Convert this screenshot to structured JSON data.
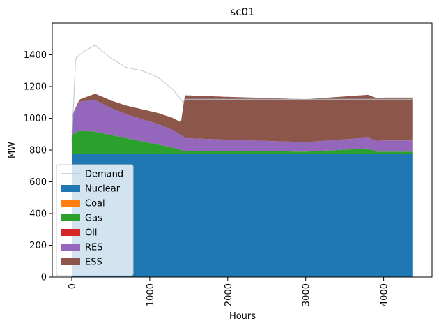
{
  "chart_data": {
    "type": "area",
    "title": "sc01",
    "xlabel": "Hours",
    "ylabel": "MW",
    "xlim": [
      -250,
      4620
    ],
    "ylim": [
      0,
      1600
    ],
    "xticks": [
      0,
      1000,
      2000,
      3000,
      4000
    ],
    "yticks": [
      0,
      200,
      400,
      600,
      800,
      1000,
      1200,
      1400
    ],
    "x_range": [
      0,
      4368
    ],
    "grid": false,
    "legend_position": "lower-left",
    "series": [
      {
        "name": "Demand",
        "kind": "line",
        "color": "#b9c7d4",
        "values_description_x": [
          0,
          50,
          150,
          300,
          500,
          700,
          900,
          1100,
          1300,
          1430,
          1450,
          2000,
          3000,
          4000,
          4368
        ],
        "values": [
          850,
          1380,
          1420,
          1460,
          1380,
          1320,
          1300,
          1260,
          1180,
          1100,
          1120,
          1120,
          1120,
          1120,
          1120
        ]
      },
      {
        "name": "Nuclear",
        "kind": "area",
        "color": "#1f77b4",
        "x": [
          0,
          4368
        ],
        "values": [
          775,
          775
        ]
      },
      {
        "name": "Coal",
        "kind": "area",
        "color": "#ff7f0e",
        "x": [
          0,
          4368
        ],
        "values": [
          0,
          0
        ]
      },
      {
        "name": "Gas",
        "kind": "area",
        "color": "#2ca02c",
        "x": [
          0,
          100,
          300,
          500,
          700,
          900,
          1100,
          1300,
          1430,
          1450,
          2000,
          3000,
          3800,
          3900,
          4368
        ],
        "values": [
          120,
          150,
          140,
          120,
          100,
          80,
          60,
          40,
          20,
          20,
          20,
          15,
          35,
          15,
          15
        ]
      },
      {
        "name": "Oil",
        "kind": "area",
        "color": "#d62728",
        "x": [
          0,
          4368
        ],
        "values": [
          0,
          0
        ]
      },
      {
        "name": "RES",
        "kind": "area",
        "color": "#9467bd",
        "x": [
          0,
          100,
          300,
          500,
          700,
          900,
          1100,
          1300,
          1430,
          1450,
          2000,
          3000,
          4000,
          4368
        ],
        "values": [
          120,
          180,
          200,
          170,
          150,
          140,
          130,
          110,
          90,
          80,
          70,
          60,
          70,
          70
        ]
      },
      {
        "name": "ESS",
        "kind": "area",
        "color": "#8c564b",
        "x": [
          0,
          300,
          1400,
          1450,
          4368
        ],
        "values": [
          0,
          40,
          80,
          270,
          270
        ]
      }
    ]
  },
  "legend": {
    "items": [
      {
        "label": "Demand",
        "color": "#b9c7d4",
        "kind": "line"
      },
      {
        "label": "Nuclear",
        "color": "#1f77b4",
        "kind": "patch"
      },
      {
        "label": "Coal",
        "color": "#ff7f0e",
        "kind": "patch"
      },
      {
        "label": "Gas",
        "color": "#2ca02c",
        "kind": "patch"
      },
      {
        "label": "Oil",
        "color": "#d62728",
        "kind": "patch"
      },
      {
        "label": "RES",
        "color": "#9467bd",
        "kind": "patch"
      },
      {
        "label": "ESS",
        "color": "#8c564b",
        "kind": "patch"
      }
    ]
  }
}
